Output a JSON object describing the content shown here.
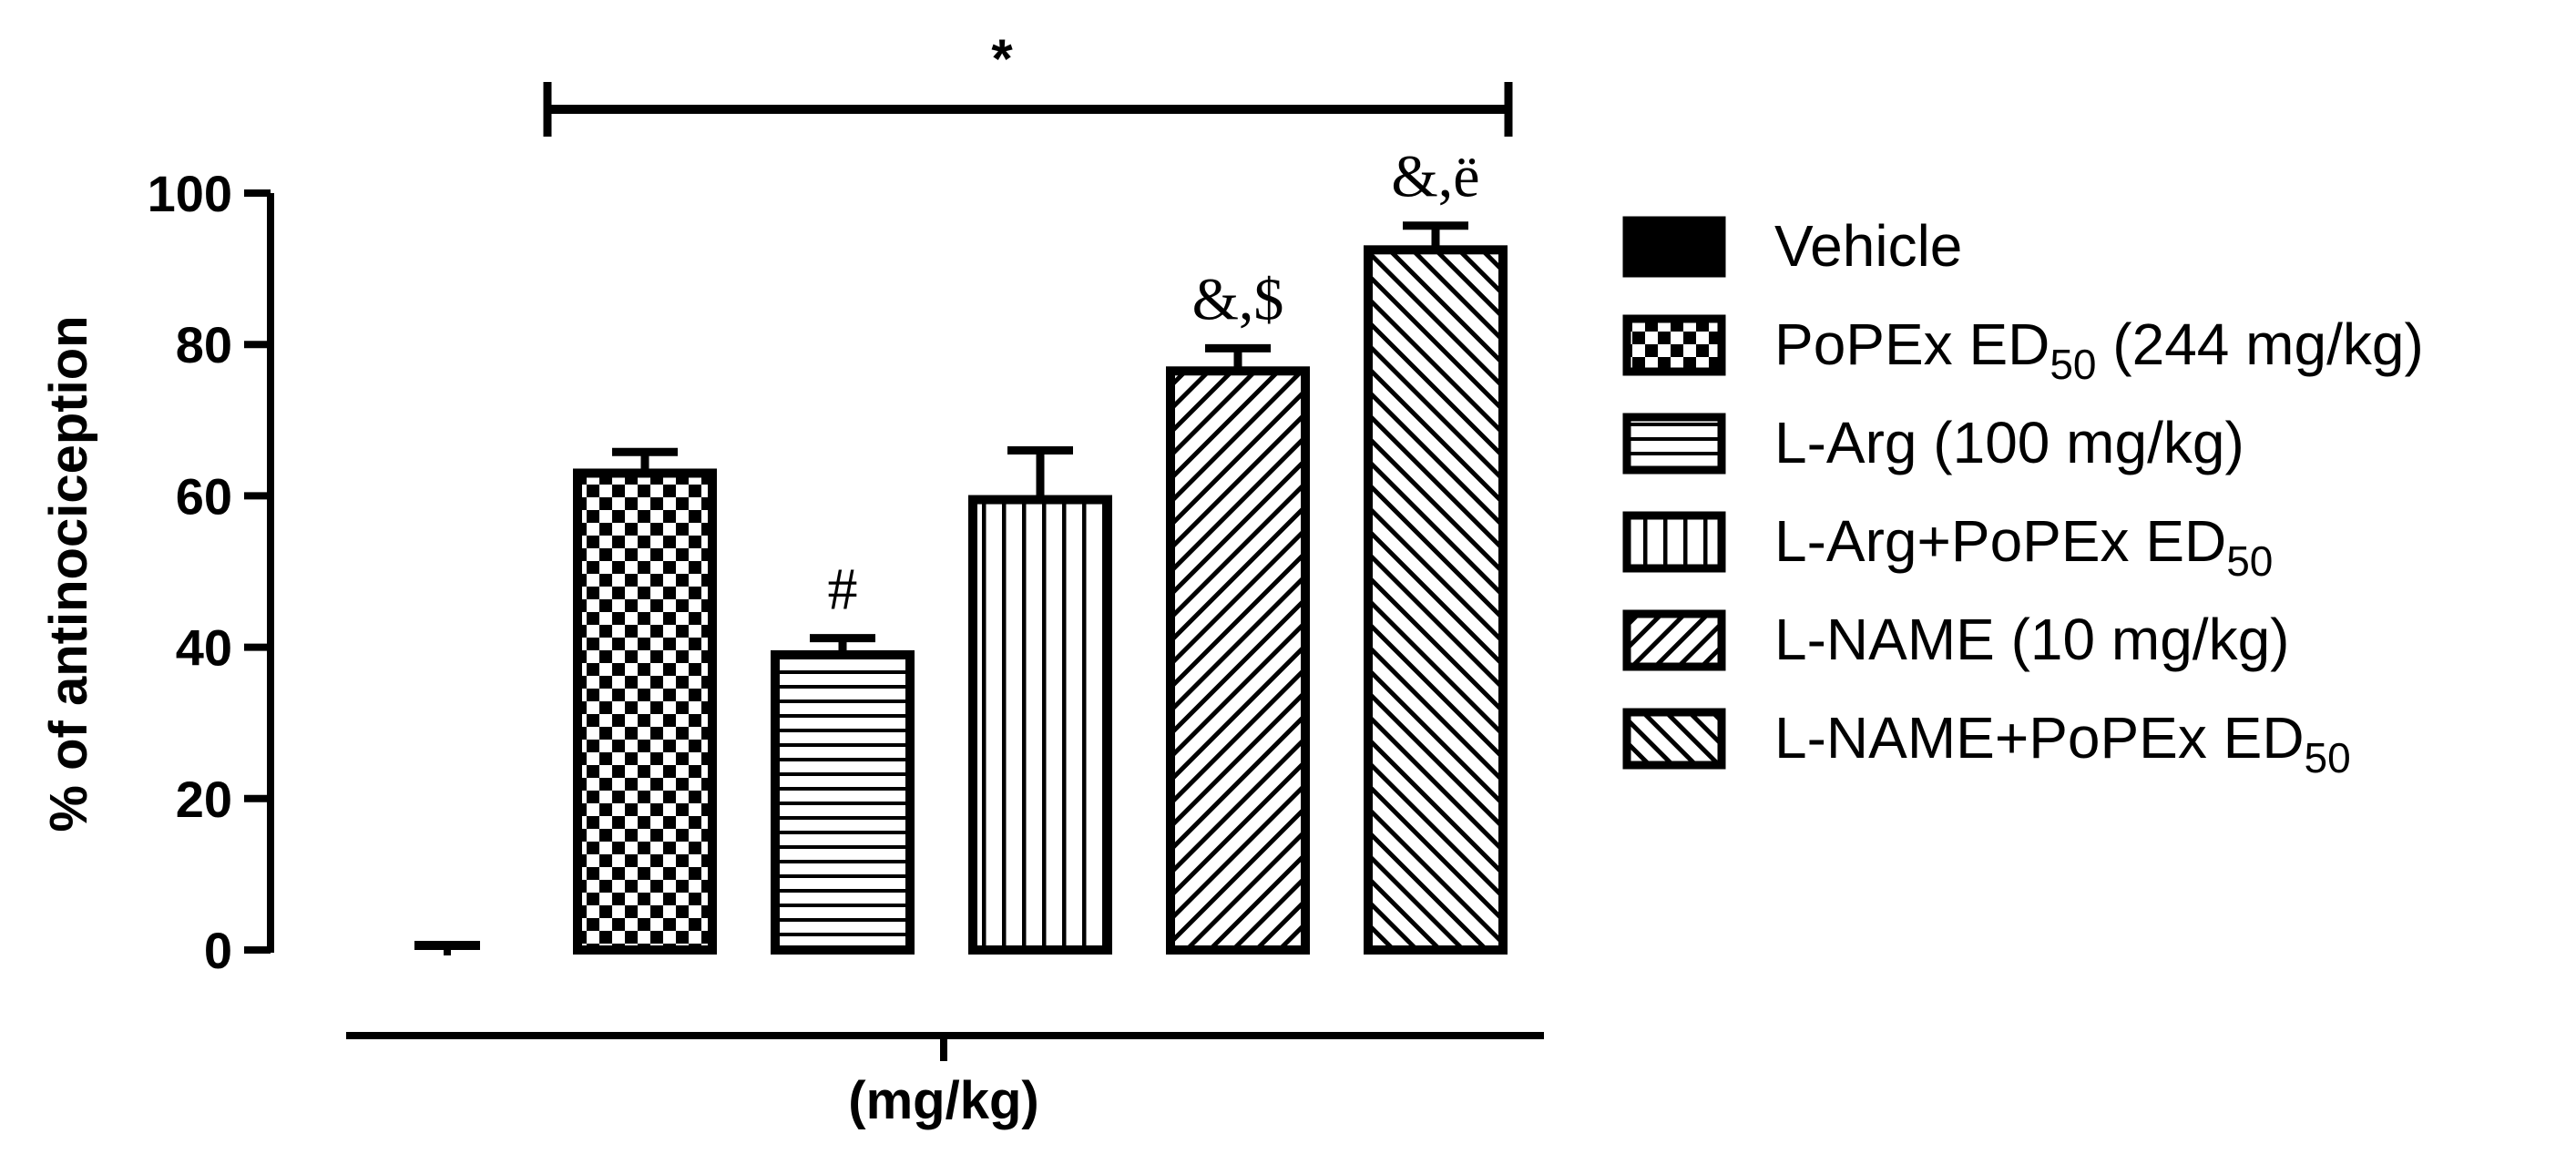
{
  "chart_data": {
    "type": "bar",
    "ylabel": "% of antinociception",
    "xlabel": "(mg/kg)",
    "ylim": [
      0,
      100
    ],
    "yticks": [
      0,
      20,
      40,
      60,
      80,
      100
    ],
    "grid": false,
    "legend_position": "right",
    "series": [
      {
        "name": "Vehicle",
        "legend_main": "Vehicle",
        "legend_sub": "",
        "legend_tail": "",
        "value": 0.5,
        "error": 0.3,
        "pattern": "solid",
        "annotation": ""
      },
      {
        "name": "PoPEx ED50 (244 mg/kg)",
        "legend_main": "PoPEx ED",
        "legend_sub": "50",
        "legend_tail": " (244 mg/kg)",
        "value": 63,
        "error": 2.8,
        "pattern": "checker",
        "annotation": ""
      },
      {
        "name": "L-Arg (100 mg/kg)",
        "legend_main": "L-Arg (100 mg/kg)",
        "legend_sub": "",
        "legend_tail": "",
        "value": 39,
        "error": 2.2,
        "pattern": "hstripe",
        "annotation": "#"
      },
      {
        "name": "L-Arg+PoPEx ED50",
        "legend_main": "L-Arg+PoPEx ED",
        "legend_sub": "50",
        "legend_tail": "",
        "value": 59.5,
        "error": 6.5,
        "pattern": "vstripe",
        "annotation": ""
      },
      {
        "name": "L-NAME (10 mg/kg)",
        "legend_main": "L-NAME (10 mg/kg)",
        "legend_sub": "",
        "legend_tail": "",
        "value": 76.5,
        "error": 3.0,
        "pattern": "diag-up",
        "annotation": "&,$"
      },
      {
        "name": "L-NAME+PoPEx ED50",
        "legend_main": "L-NAME+PoPEx ED",
        "legend_sub": "50",
        "legend_tail": "",
        "value": 92.5,
        "error": 3.2,
        "pattern": "diag-down",
        "annotation": "&,ë"
      }
    ],
    "significance_bracket": {
      "label": "*",
      "from_index": 1,
      "to_index": 5
    }
  }
}
